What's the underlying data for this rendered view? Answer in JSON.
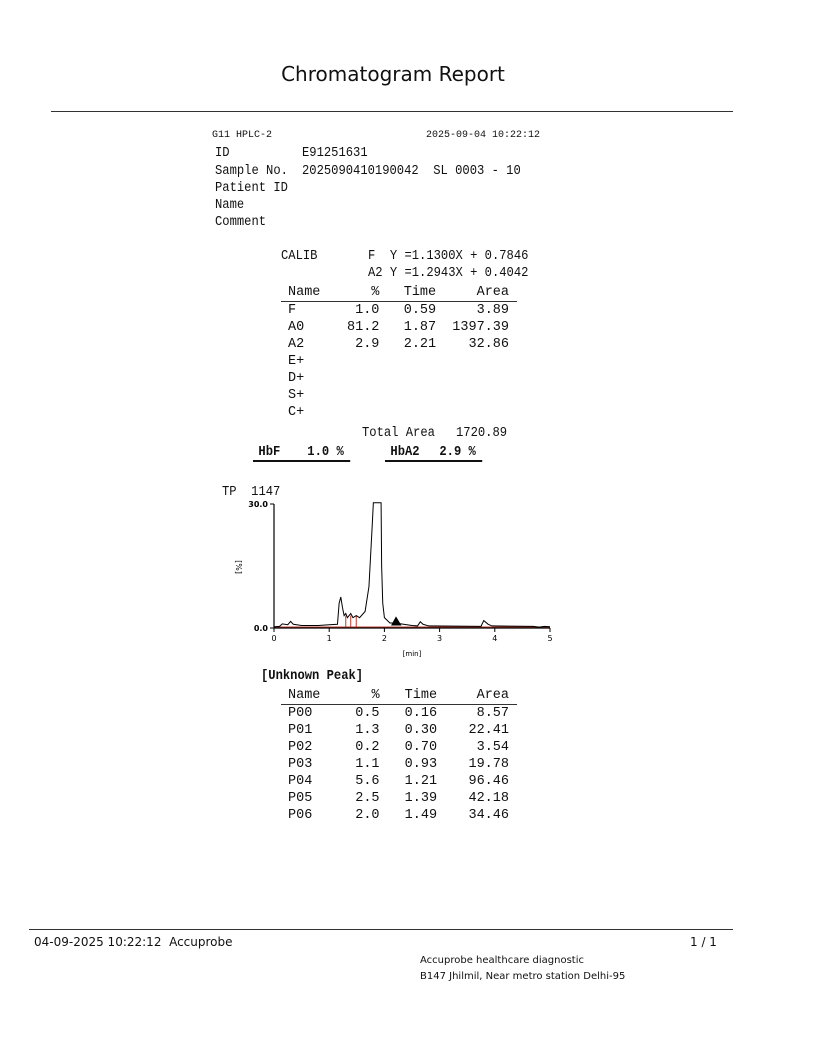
{
  "page_title": "Chromatogram Report",
  "header": {
    "instrument": "G11 HPLC-2",
    "datetime": "2025-09-04 10:22:12"
  },
  "sample": {
    "id_label": "ID",
    "id_value": "E91251631",
    "sample_no_label": "Sample No.",
    "sample_no_value": "2025090410190042  SL 0003 - 10",
    "patient_id_label": "Patient ID",
    "name_label": "Name",
    "comment_label": "Comment"
  },
  "calib": {
    "label": "CALIB",
    "f_eq": "F  Y =1.1300X + 0.7846",
    "a2_eq": "A2 Y =1.2943X + 0.4042"
  },
  "results": {
    "headers": [
      "Name",
      "%",
      "Time",
      "Area"
    ],
    "rows": [
      [
        "F",
        "1.0",
        "0.59",
        "3.89"
      ],
      [
        "A0",
        "81.2",
        "1.87",
        "1397.39"
      ],
      [
        "A2",
        "2.9",
        "2.21",
        "32.86"
      ],
      [
        "E+",
        "",
        "",
        ""
      ],
      [
        "D+",
        "",
        "",
        ""
      ],
      [
        "S+",
        "",
        "",
        ""
      ],
      [
        "C+",
        "",
        "",
        ""
      ]
    ],
    "total_area_label": "Total Area",
    "total_area_value": "1720.89"
  },
  "summary": {
    "hbf_label": "HbF",
    "hbf_value": "1.0 %",
    "hba2_label": "HbA2",
    "hba2_value": "2.9 %"
  },
  "chart_data": {
    "type": "line",
    "title": "TP  1147",
    "xlabel": "[min]",
    "ylabel": "[%]",
    "xlim": [
      0,
      5
    ],
    "ylim": [
      0,
      30
    ],
    "x_ticks": [
      "0",
      "1",
      "2",
      "3",
      "4",
      "5"
    ],
    "y_ticks": [
      "0.0",
      "30.0"
    ],
    "line_color": "#000000",
    "baseline_color": "#c0392b",
    "trace": [
      [
        0.0,
        0.3
      ],
      [
        0.1,
        0.4
      ],
      [
        0.15,
        1.0
      ],
      [
        0.25,
        0.8
      ],
      [
        0.3,
        1.6
      ],
      [
        0.35,
        0.9
      ],
      [
        0.5,
        0.6
      ],
      [
        0.8,
        0.6
      ],
      [
        1.0,
        0.8
      ],
      [
        1.15,
        0.9
      ],
      [
        1.18,
        6.0
      ],
      [
        1.21,
        7.5
      ],
      [
        1.24,
        5.0
      ],
      [
        1.27,
        3.0
      ],
      [
        1.3,
        3.5
      ],
      [
        1.33,
        2.5
      ],
      [
        1.39,
        3.5
      ],
      [
        1.43,
        2.5
      ],
      [
        1.49,
        3.0
      ],
      [
        1.55,
        2.5
      ],
      [
        1.65,
        4.0
      ],
      [
        1.72,
        10
      ],
      [
        1.76,
        20
      ],
      [
        1.78,
        25
      ],
      [
        1.8,
        32
      ],
      [
        1.94,
        32
      ],
      [
        1.95,
        15
      ],
      [
        1.97,
        6
      ],
      [
        2.0,
        2.5
      ],
      [
        2.1,
        1.2
      ],
      [
        2.2,
        1.2
      ],
      [
        2.3,
        1.0
      ],
      [
        2.5,
        0.6
      ],
      [
        2.6,
        0.5
      ],
      [
        2.65,
        1.5
      ],
      [
        2.7,
        0.9
      ],
      [
        2.8,
        0.5
      ],
      [
        3.75,
        0.4
      ],
      [
        3.8,
        1.8
      ],
      [
        3.88,
        0.9
      ],
      [
        3.95,
        0.5
      ],
      [
        4.7,
        0.4
      ],
      [
        4.8,
        0.2
      ],
      [
        4.9,
        0.4
      ],
      [
        5.0,
        0.3
      ]
    ],
    "peak_markers": [
      1.3,
      1.39,
      1.49
    ],
    "filled_peak": {
      "time": 2.21,
      "height": 2.8
    }
  },
  "unknown": {
    "title": "[Unknown Peak]",
    "headers": [
      "Name",
      "%",
      "Time",
      "Area"
    ],
    "rows": [
      [
        "P00",
        "0.5",
        "0.16",
        "8.57"
      ],
      [
        "P01",
        "1.3",
        "0.30",
        "22.41"
      ],
      [
        "P02",
        "0.2",
        "0.70",
        "3.54"
      ],
      [
        "P03",
        "1.1",
        "0.93",
        "19.78"
      ],
      [
        "P04",
        "5.6",
        "1.21",
        "96.46"
      ],
      [
        "P05",
        "2.5",
        "1.39",
        "42.18"
      ],
      [
        "P06",
        "2.0",
        "1.49",
        "34.46"
      ]
    ]
  },
  "footer": {
    "left": "04-09-2025 10:22:12  Accuprobe",
    "page": "1 / 1",
    "address_line1": "Accuprobe healthcare diagnostic",
    "address_line2": "B147 Jhilmil, Near metro station Delhi-95"
  }
}
